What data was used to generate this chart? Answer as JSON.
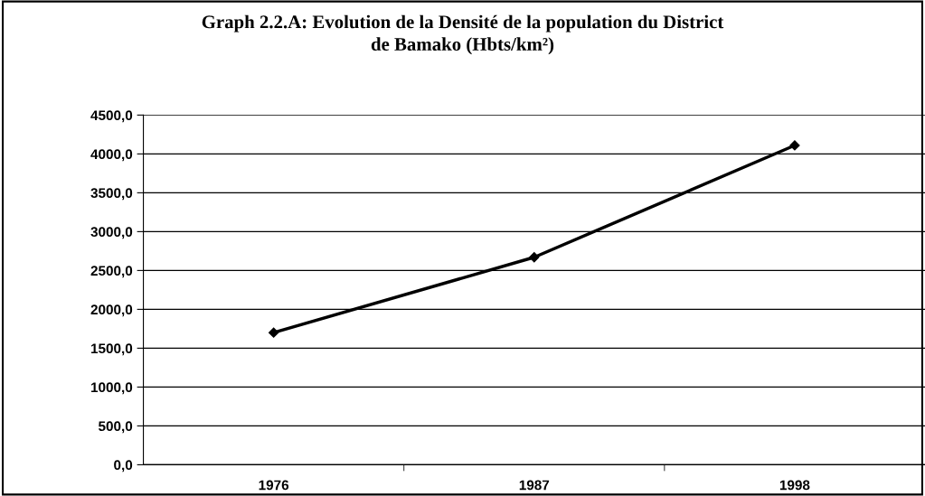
{
  "chart_data": {
    "type": "line",
    "title": "Graph 2.2.A: Evolution de la Densité de la population du District\nde Bamako (Hbts/km²)",
    "categories": [
      "1976",
      "1987",
      "1998"
    ],
    "series": [
      {
        "color": "#000000",
        "values": [
          1700,
          2670,
          4110
        ]
      }
    ],
    "ylim": [
      0,
      4500
    ],
    "yticks": [
      {
        "value": 0,
        "label": "0,0"
      },
      {
        "value": 500,
        "label": "500,0"
      },
      {
        "value": 1000,
        "label": "1000,0"
      },
      {
        "value": 1500,
        "label": "1500,0"
      },
      {
        "value": 2000,
        "label": "2000,0"
      },
      {
        "value": 2500,
        "label": "2500,0"
      },
      {
        "value": 3000,
        "label": "3000,0"
      },
      {
        "value": 3500,
        "label": "3500,0"
      },
      {
        "value": 4000,
        "label": "4000,0"
      },
      {
        "value": 4500,
        "label": "4500,0"
      }
    ],
    "grid": "y",
    "marker": "diamond",
    "line_style": "solid"
  }
}
